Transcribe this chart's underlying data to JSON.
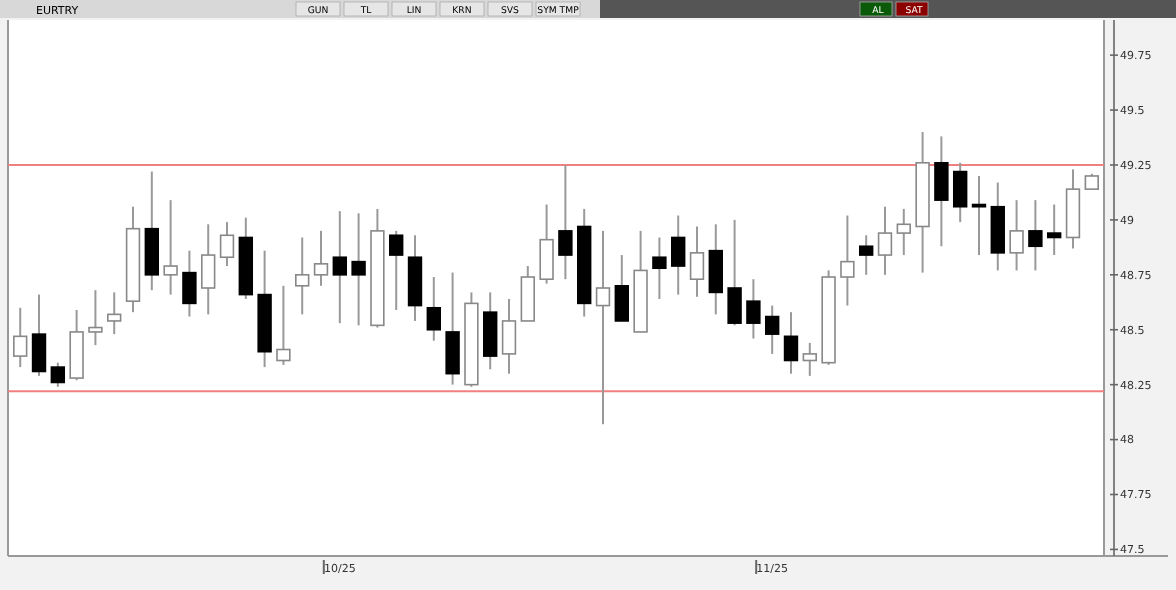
{
  "chart_data": {
    "type": "candlestick",
    "title": "EURTRY",
    "annotations": [
      "GUN",
      "TL",
      "LIN",
      "KRN",
      "SVS",
      "SYM TMP",
      "AL",
      "SAT"
    ],
    "categories": [
      null,
      null,
      null,
      null,
      null,
      null,
      null,
      null,
      null,
      null,
      null,
      null,
      null,
      null,
      null,
      null,
      null,
      "10/25",
      null,
      null,
      null,
      null,
      null,
      null,
      null,
      null,
      null,
      null,
      null,
      null,
      null,
      null,
      null,
      null,
      null,
      null,
      null,
      null,
      null,
      null,
      "11/25",
      null,
      null,
      null,
      null,
      null,
      null,
      null,
      null,
      null,
      null,
      null,
      null,
      null,
      null,
      null,
      null,
      null
    ],
    "ohlc": [
      [
        48.38,
        48.6,
        48.33,
        48.47
      ],
      [
        48.48,
        48.66,
        48.29,
        48.31
      ],
      [
        48.33,
        48.35,
        48.24,
        48.26
      ],
      [
        48.28,
        48.59,
        48.27,
        48.49
      ],
      [
        48.49,
        48.68,
        48.43,
        48.51
      ],
      [
        48.54,
        48.67,
        48.48,
        48.57
      ],
      [
        48.63,
        49.06,
        48.58,
        48.96
      ],
      [
        48.96,
        49.22,
        48.68,
        48.75
      ],
      [
        48.75,
        49.09,
        48.66,
        48.79
      ],
      [
        48.76,
        48.86,
        48.56,
        48.62
      ],
      [
        48.69,
        48.98,
        48.57,
        48.84
      ],
      [
        48.83,
        48.99,
        48.79,
        48.93
      ],
      [
        48.92,
        49.01,
        48.64,
        48.66
      ],
      [
        48.66,
        48.86,
        48.33,
        48.4
      ],
      [
        48.36,
        48.7,
        48.34,
        48.41
      ],
      [
        48.7,
        48.92,
        48.57,
        48.75
      ],
      [
        48.75,
        48.95,
        48.7,
        48.8
      ],
      [
        48.83,
        49.04,
        48.53,
        48.75
      ],
      [
        48.81,
        49.03,
        48.52,
        48.75
      ],
      [
        48.52,
        49.05,
        48.51,
        48.95
      ],
      [
        48.93,
        48.95,
        48.59,
        48.84
      ],
      [
        48.83,
        48.93,
        48.54,
        48.61
      ],
      [
        48.6,
        48.74,
        48.45,
        48.5
      ],
      [
        48.49,
        48.76,
        48.25,
        48.3
      ],
      [
        48.25,
        48.67,
        48.24,
        48.62
      ],
      [
        48.58,
        48.67,
        48.32,
        48.38
      ],
      [
        48.39,
        48.64,
        48.3,
        48.54
      ],
      [
        48.54,
        48.79,
        48.54,
        48.74
      ],
      [
        48.73,
        49.07,
        48.71,
        48.91
      ],
      [
        48.95,
        49.25,
        48.73,
        48.84
      ],
      [
        48.97,
        49.05,
        48.56,
        48.62
      ],
      [
        48.61,
        48.95,
        48.07,
        48.69
      ],
      [
        48.7,
        48.84,
        48.54,
        48.54
      ],
      [
        48.49,
        48.95,
        48.49,
        48.77
      ],
      [
        48.83,
        48.92,
        48.64,
        48.78
      ],
      [
        48.92,
        49.02,
        48.66,
        48.79
      ],
      [
        48.73,
        48.97,
        48.65,
        48.85
      ],
      [
        48.86,
        48.98,
        48.57,
        48.67
      ],
      [
        48.69,
        49.0,
        48.52,
        48.53
      ],
      [
        48.63,
        48.73,
        48.46,
        48.53
      ],
      [
        48.56,
        48.61,
        48.39,
        48.48
      ],
      [
        48.47,
        48.58,
        48.3,
        48.36
      ],
      [
        48.36,
        48.44,
        48.29,
        48.39
      ],
      [
        48.35,
        48.77,
        48.34,
        48.74
      ],
      [
        48.74,
        49.02,
        48.61,
        48.81
      ],
      [
        48.88,
        48.93,
        48.75,
        48.84
      ],
      [
        48.84,
        49.06,
        48.75,
        48.94
      ],
      [
        48.94,
        49.05,
        48.84,
        48.98
      ],
      [
        48.97,
        49.4,
        48.76,
        49.26
      ],
      [
        49.26,
        49.38,
        48.88,
        49.09
      ],
      [
        49.22,
        49.26,
        48.99,
        49.06
      ],
      [
        49.07,
        49.2,
        48.84,
        49.06
      ],
      [
        49.06,
        49.17,
        48.77,
        48.85
      ],
      [
        48.85,
        49.09,
        48.77,
        48.95
      ],
      [
        48.95,
        49.09,
        48.77,
        48.88
      ],
      [
        48.94,
        49.07,
        48.84,
        48.92
      ],
      [
        48.92,
        49.23,
        48.87,
        49.14
      ],
      [
        49.14,
        49.21,
        49.14,
        49.2
      ]
    ],
    "ylim": [
      47.47,
      49.91
    ],
    "yticks": [
      {
        "value": 47.5,
        "label": "47.5"
      },
      {
        "value": 47.75,
        "label": "47.75"
      },
      48,
      {
        "value": 48.25,
        "label": "48.25"
      },
      {
        "value": 48.5,
        "label": "48.5"
      },
      {
        "value": 48.75,
        "label": "48.75"
      },
      49,
      {
        "value": 49.25,
        "label": "49.25"
      },
      {
        "value": 49.5,
        "label": "49.5"
      },
      {
        "value": 49.75,
        "label": "49.75"
      }
    ],
    "ref_lines": [
      {
        "axis": "y",
        "value": 49.25,
        "color": "#f08080"
      },
      {
        "axis": "y",
        "value": 48.22,
        "color": "#f08080"
      }
    ]
  }
}
